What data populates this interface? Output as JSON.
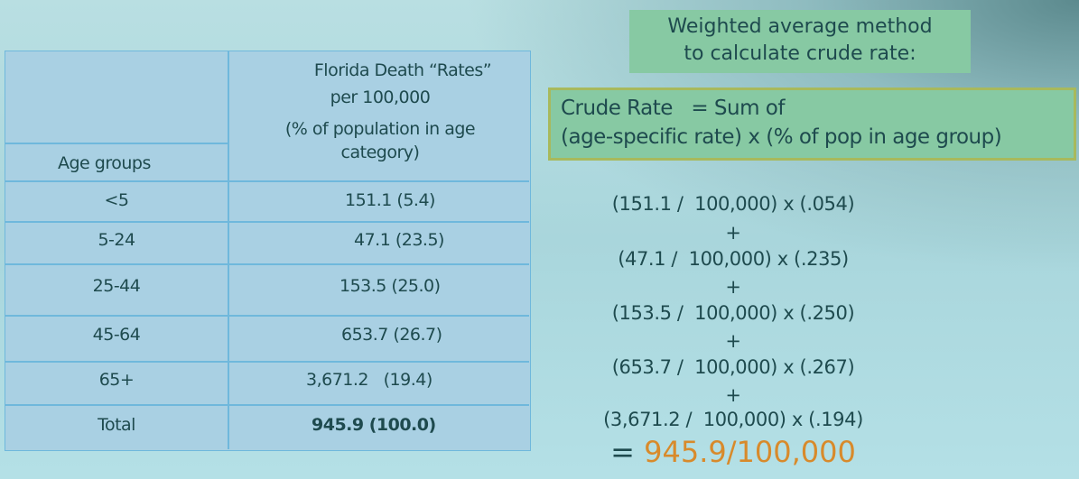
{
  "table": {
    "header_age": "Age groups",
    "header_rate_lines": [
      "Florida Death “Rates”",
      "per 100,000",
      "(% of population in age",
      "category)"
    ],
    "rows": [
      {
        "age": "<5",
        "value": "151.1 (5.4)"
      },
      {
        "age": "5-24",
        "value": "47.1 (23.5)"
      },
      {
        "age": "25-44",
        "value": "153.5 (25.0)"
      },
      {
        "age": "45-64",
        "value": "653.7 (26.7)"
      },
      {
        "age": "65+",
        "value": "3,671.2   (19.4)"
      },
      {
        "age": "Total",
        "value": "945.9 (100.0)"
      }
    ]
  },
  "method_box": {
    "line1": "Weighted average method",
    "line2": "to calculate crude rate:"
  },
  "formula_box": {
    "line1": "Crude Rate   = Sum of",
    "line2": "(age-specific rate) x (% of pop in age group)"
  },
  "calculation": {
    "terms": [
      "(151.1 /  100,000) x (.054)",
      "(47.1 /  100,000) x (.235)",
      "(153.5 /  100,000) x (.250)",
      "(653.7 /  100,000) x (.267)",
      "(3,671.2 /  100,000) x (.194)"
    ],
    "plus": "+",
    "equals": "= ",
    "result": "945.9/100,000"
  },
  "colors": {
    "result": "#d88a2b",
    "box": "#87c9a3",
    "table": "#a9d0e3",
    "text": "#1e4a4e"
  }
}
